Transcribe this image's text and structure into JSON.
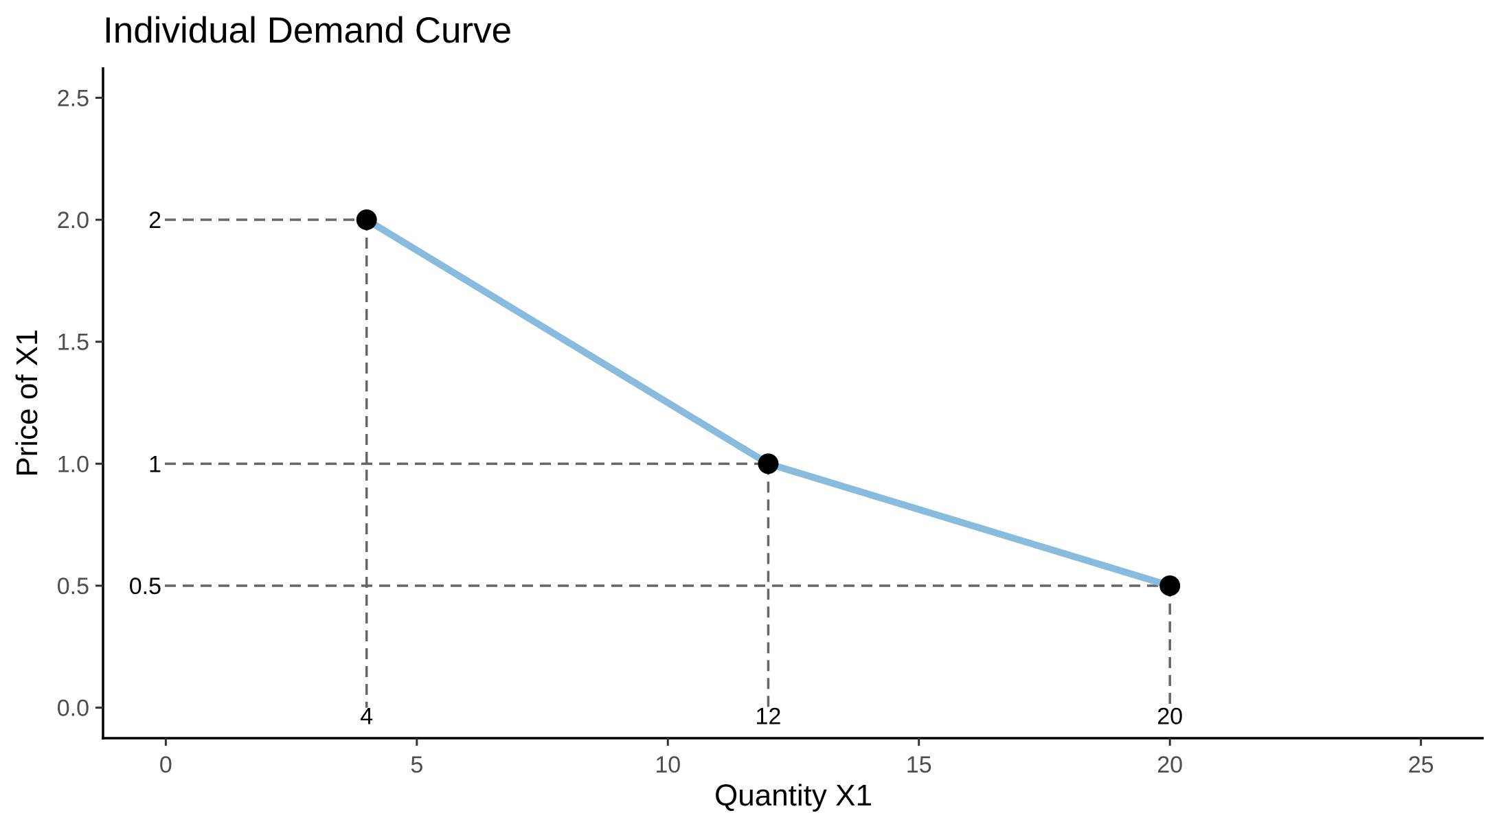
{
  "chart_data": {
    "type": "line",
    "title": "Individual Demand Curve",
    "xlabel": "Quantity X1",
    "ylabel": "Price of X1",
    "xlim": [
      -1.25,
      26.25
    ],
    "ylim": [
      -0.125,
      2.625
    ],
    "x_ticks": [
      0,
      5,
      10,
      15,
      20,
      25
    ],
    "x_tick_labels": [
      "0",
      "5",
      "10",
      "15",
      "20",
      "25"
    ],
    "y_ticks": [
      0,
      0.5,
      1,
      1.5,
      2,
      2.5
    ],
    "y_tick_labels": [
      "0.0",
      "0.5",
      "1.0",
      "1.5",
      "2.0",
      "2.5"
    ],
    "grid": false,
    "line_color": "#88BBDD",
    "point_color": "#000000",
    "guide_color": "#666666",
    "points": [
      {
        "x": 4,
        "y": 2,
        "x_label": "4",
        "y_label": "2"
      },
      {
        "x": 12,
        "y": 1,
        "x_label": "12",
        "y_label": "1"
      },
      {
        "x": 20,
        "y": 0.5,
        "x_label": "20",
        "y_label": "0.5"
      }
    ]
  }
}
